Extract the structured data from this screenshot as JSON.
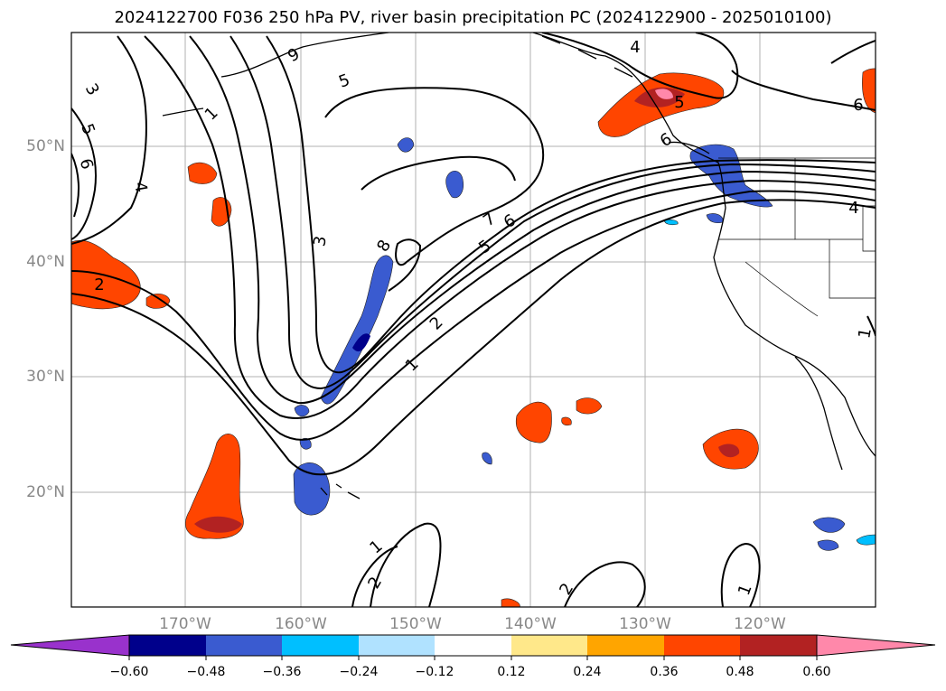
{
  "title": "2024122700 F036 250 hPa PV, river basin precipitation PC (2024122900 - 2025010100)",
  "lat_labels": [
    "50°N",
    "40°N",
    "30°N",
    "20°N"
  ],
  "lon_labels": [
    "170°W",
    "160°W",
    "150°W",
    "140°W",
    "130°W",
    "120°W"
  ],
  "colorbar": {
    "ticks": [
      "−0.60",
      "−0.48",
      "−0.36",
      "−0.24",
      "−0.12",
      "0.12",
      "0.24",
      "0.36",
      "0.48",
      "0.60"
    ],
    "colors": [
      "#9932cc",
      "#00008b",
      "#3a5bd0",
      "#00bfff",
      "#b0e2ff",
      "#ffffff",
      "#ffe88a",
      "#ffa500",
      "#ff4500",
      "#b22222",
      "#ff88aa"
    ]
  },
  "contour_labels": [
    "3",
    "5",
    "6",
    "4",
    "2",
    "9",
    "5",
    "4",
    "6",
    "7",
    "6",
    "5",
    "8",
    "3",
    "2",
    "1",
    "2",
    "1",
    "2",
    "1",
    "1",
    "1",
    "5",
    "6",
    "4"
  ]
}
